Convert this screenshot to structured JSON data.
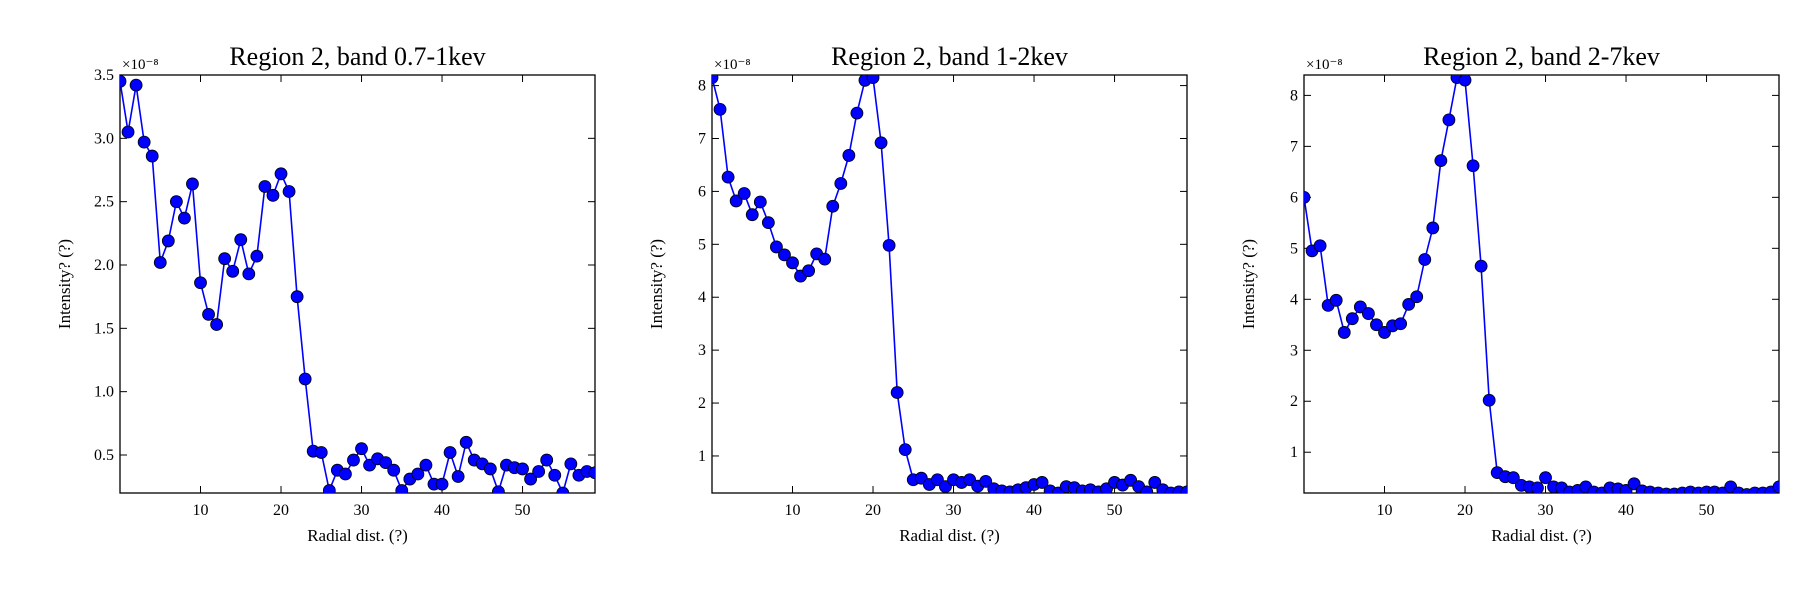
{
  "chart_data": [
    {
      "type": "line",
      "title": "Region 2, band 0.7-1kev",
      "xlabel": "Radial dist. (?)",
      "ylabel": "Intensity? (?)",
      "y_exponent": "×10⁻⁸",
      "xlim": [
        0,
        59
      ],
      "ylim": [
        0.2,
        3.5
      ],
      "xticks": [
        10,
        20,
        30,
        40,
        50
      ],
      "yticks": [
        0.5,
        1.0,
        1.5,
        2.0,
        2.5,
        3.0,
        3.5
      ],
      "ytick_labels": [
        "0.5",
        "1.0",
        "1.5",
        "2.0",
        "2.5",
        "3.0",
        "3.5"
      ],
      "marker": "circle",
      "color": "#0000ff",
      "grid": false,
      "series": [
        {
          "x": [
            0,
            1,
            2,
            3,
            4,
            5,
            6,
            7,
            8,
            9,
            10,
            11,
            12,
            13,
            14,
            15,
            16,
            17,
            18,
            19,
            20,
            21,
            22,
            23,
            24,
            25,
            26,
            27,
            28,
            29,
            30,
            31,
            32,
            33,
            34,
            35,
            36,
            37,
            38,
            39,
            40,
            41,
            42,
            43,
            44,
            45,
            46,
            47,
            48,
            49,
            50,
            51,
            52,
            53,
            54,
            55,
            56,
            57,
            58,
            59
          ],
          "y": [
            3.45,
            3.05,
            3.42,
            2.97,
            2.86,
            2.02,
            2.19,
            2.5,
            2.37,
            2.64,
            1.86,
            1.61,
            1.53,
            2.05,
            1.95,
            2.2,
            1.93,
            2.07,
            2.62,
            2.55,
            2.72,
            2.58,
            1.75,
            1.1,
            0.53,
            0.52,
            0.22,
            0.38,
            0.35,
            0.46,
            0.55,
            0.42,
            0.47,
            0.44,
            0.38,
            0.22,
            0.31,
            0.35,
            0.42,
            0.27,
            0.27,
            0.52,
            0.33,
            0.6,
            0.46,
            0.43,
            0.39,
            0.21,
            0.42,
            0.4,
            0.39,
            0.31,
            0.37,
            0.46,
            0.34,
            0.2,
            0.43,
            0.34,
            0.37,
            0.36
          ]
        }
      ]
    },
    {
      "type": "line",
      "title": "Region 2, band 1-2kev",
      "xlabel": "Radial dist. (?)",
      "ylabel": "Intensity? (?)",
      "y_exponent": "×10⁻⁸",
      "xlim": [
        0,
        59
      ],
      "ylim": [
        0.3,
        8.2
      ],
      "xticks": [
        10,
        20,
        30,
        40,
        50
      ],
      "yticks": [
        1,
        2,
        3,
        4,
        5,
        6,
        7,
        8
      ],
      "ytick_labels": [
        "1",
        "2",
        "3",
        "4",
        "5",
        "6",
        "7",
        "8"
      ],
      "marker": "circle",
      "color": "#0000ff",
      "grid": false,
      "series": [
        {
          "x": [
            0,
            1,
            2,
            3,
            4,
            5,
            6,
            7,
            8,
            9,
            10,
            11,
            12,
            13,
            14,
            15,
            16,
            17,
            18,
            19,
            20,
            21,
            22,
            23,
            24,
            25,
            26,
            27,
            28,
            29,
            30,
            31,
            32,
            33,
            34,
            35,
            36,
            37,
            38,
            39,
            40,
            41,
            42,
            43,
            44,
            45,
            46,
            47,
            48,
            49,
            50,
            51,
            52,
            53,
            54,
            55,
            56,
            57,
            58,
            59
          ],
          "y": [
            8.15,
            7.55,
            6.27,
            5.82,
            5.96,
            5.56,
            5.8,
            5.41,
            4.95,
            4.8,
            4.65,
            4.4,
            4.5,
            4.82,
            4.72,
            5.72,
            6.15,
            6.68,
            7.48,
            8.1,
            8.15,
            6.92,
            4.98,
            2.2,
            1.12,
            0.55,
            0.58,
            0.46,
            0.55,
            0.42,
            0.55,
            0.5,
            0.55,
            0.43,
            0.52,
            0.38,
            0.34,
            0.32,
            0.36,
            0.4,
            0.46,
            0.5,
            0.34,
            0.3,
            0.42,
            0.4,
            0.34,
            0.36,
            0.32,
            0.38,
            0.5,
            0.45,
            0.54,
            0.42,
            0.32,
            0.5,
            0.36,
            0.3,
            0.32,
            0.32
          ]
        }
      ]
    },
    {
      "type": "line",
      "title": "Region 2, band 2-7kev",
      "xlabel": "Radial dist. (?)",
      "ylabel": "Intensity? (?)",
      "y_exponent": "×10⁻⁸",
      "xlim": [
        0,
        59
      ],
      "ylim": [
        0.2,
        8.4
      ],
      "xticks": [
        10,
        20,
        30,
        40,
        50
      ],
      "yticks": [
        1,
        2,
        3,
        4,
        5,
        6,
        7,
        8
      ],
      "ytick_labels": [
        "1",
        "2",
        "3",
        "4",
        "5",
        "6",
        "7",
        "8"
      ],
      "marker": "circle",
      "color": "#0000ff",
      "grid": false,
      "series": [
        {
          "x": [
            0,
            1,
            2,
            3,
            4,
            5,
            6,
            7,
            8,
            9,
            10,
            11,
            12,
            13,
            14,
            15,
            16,
            17,
            18,
            19,
            20,
            21,
            22,
            23,
            24,
            25,
            26,
            27,
            28,
            29,
            30,
            31,
            32,
            33,
            34,
            35,
            36,
            37,
            38,
            39,
            40,
            41,
            42,
            43,
            44,
            45,
            46,
            47,
            48,
            49,
            50,
            51,
            52,
            53,
            54,
            55,
            56,
            57,
            58,
            59
          ],
          "y": [
            6.0,
            4.95,
            5.05,
            3.88,
            3.98,
            3.35,
            3.62,
            3.85,
            3.72,
            3.5,
            3.35,
            3.48,
            3.52,
            3.9,
            4.05,
            4.78,
            5.4,
            6.72,
            7.52,
            8.35,
            8.3,
            6.62,
            4.65,
            2.02,
            0.6,
            0.52,
            0.5,
            0.35,
            0.32,
            0.3,
            0.5,
            0.32,
            0.3,
            0.22,
            0.25,
            0.32,
            0.22,
            0.2,
            0.3,
            0.28,
            0.25,
            0.38,
            0.24,
            0.22,
            0.2,
            0.18,
            0.18,
            0.2,
            0.22,
            0.2,
            0.22,
            0.22,
            0.2,
            0.32,
            0.2,
            0.17,
            0.2,
            0.2,
            0.22,
            0.32
          ]
        }
      ]
    }
  ]
}
